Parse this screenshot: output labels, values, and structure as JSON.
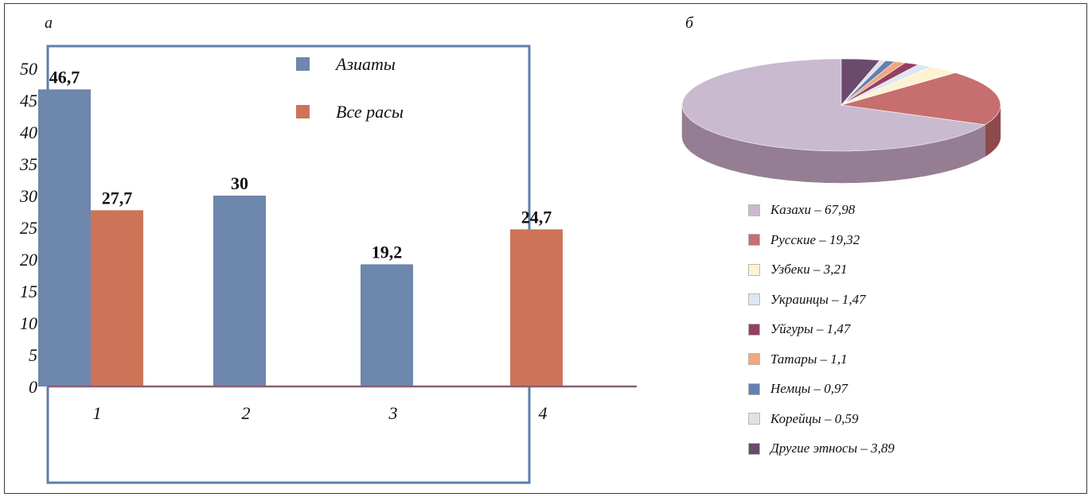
{
  "panels": {
    "left_label": "а",
    "right_label": "б"
  },
  "colors": {
    "asians": "#6d87ad",
    "all_races": "#cd7458",
    "axis": "#8a6070",
    "box": "#5d7fae",
    "pie_slices": [
      "#c9bad0",
      "#c76e6e",
      "#fdf3d2",
      "#dde6f2",
      "#934062",
      "#f3a77d",
      "#6580b2",
      "#e2e2e2",
      "#6b4a6e"
    ],
    "pie_sides": [
      "#957e93",
      "#8c4a4c",
      "#b7ad93",
      "#9da6b2",
      "#652c44",
      "#b07657",
      "#44587c",
      "#a0a0a0",
      "#4a3350"
    ]
  },
  "chart_data": [
    {
      "type": "bar",
      "categories": [
        "1",
        "2",
        "3",
        "4"
      ],
      "series": [
        {
          "name": "Азиаты",
          "values": [
            46.7,
            30,
            19.2,
            null
          ]
        },
        {
          "name": "Все расы",
          "values": [
            27.7,
            null,
            null,
            24.7
          ]
        }
      ],
      "value_labels": [
        [
          "46,7",
          "30",
          "19,2",
          ""
        ],
        [
          "27,7",
          "",
          "",
          "24,7"
        ]
      ],
      "y_ticks": [
        "0",
        "5",
        "10",
        "15",
        "20",
        "25",
        "30",
        "35",
        "40",
        "45",
        "50"
      ],
      "ylim": [
        0,
        50
      ],
      "grid": false,
      "legend_position": "top-center"
    },
    {
      "type": "pie",
      "style": "3d",
      "labels": [
        "Казахи",
        "Русские",
        "Узбеки",
        "Украинцы",
        "Уйгуры",
        "Татары",
        "Немцы",
        "Корейцы",
        "Другие этносы"
      ],
      "values": [
        67.98,
        19.32,
        3.21,
        1.47,
        1.47,
        1.1,
        0.97,
        0.59,
        3.89
      ],
      "legend_entries": [
        "Казахи – 67,98",
        "Русские – 19,32",
        "Узбеки – 3,21",
        "Украинцы – 1,47",
        "Уйгуры – 1,47",
        "Татары – 1,1",
        "Немцы – 0,97",
        "Корейцы – 0,59",
        "Другие этносы – 3,89"
      ],
      "legend_position": "below"
    }
  ]
}
